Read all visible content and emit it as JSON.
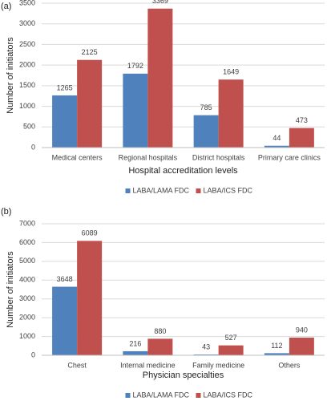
{
  "chart_data": [
    {
      "type": "bar",
      "label": "(a)",
      "x_label": "Hospital accreditation levels",
      "y_label": "Number of initiators",
      "categories": [
        "Medical centers",
        "Regional hospitals",
        "District hospitals",
        "Primary care clinics"
      ],
      "series": [
        {
          "name": "LABA/LAMA FDC",
          "color": "#4f81bd",
          "values": [
            1265,
            1792,
            785,
            44
          ]
        },
        {
          "name": "LABA/ICS FDC",
          "color": "#c0504d",
          "values": [
            2125,
            3369,
            1649,
            473
          ]
        }
      ],
      "ylim": [
        0,
        3500
      ],
      "yticks": [
        0,
        500,
        1000,
        1500,
        2000,
        2500,
        3000,
        3500
      ],
      "grid": true,
      "legend": "bottom"
    },
    {
      "type": "bar",
      "label": "(b)",
      "x_label": "Physician specialties",
      "y_label": "Number of initiators",
      "categories": [
        "Chest",
        "Internal medicine",
        "Family medicine",
        "Others"
      ],
      "series": [
        {
          "name": "LABA/LAMA FDC",
          "color": "#4f81bd",
          "values": [
            3648,
            216,
            43,
            112
          ]
        },
        {
          "name": "LABA/ICS FDC",
          "color": "#c0504d",
          "values": [
            6089,
            880,
            527,
            940
          ]
        }
      ],
      "ylim": [
        0,
        7000
      ],
      "yticks": [
        0,
        1000,
        2000,
        3000,
        4000,
        5000,
        6000,
        7000
      ],
      "grid": true,
      "legend": "bottom"
    }
  ]
}
